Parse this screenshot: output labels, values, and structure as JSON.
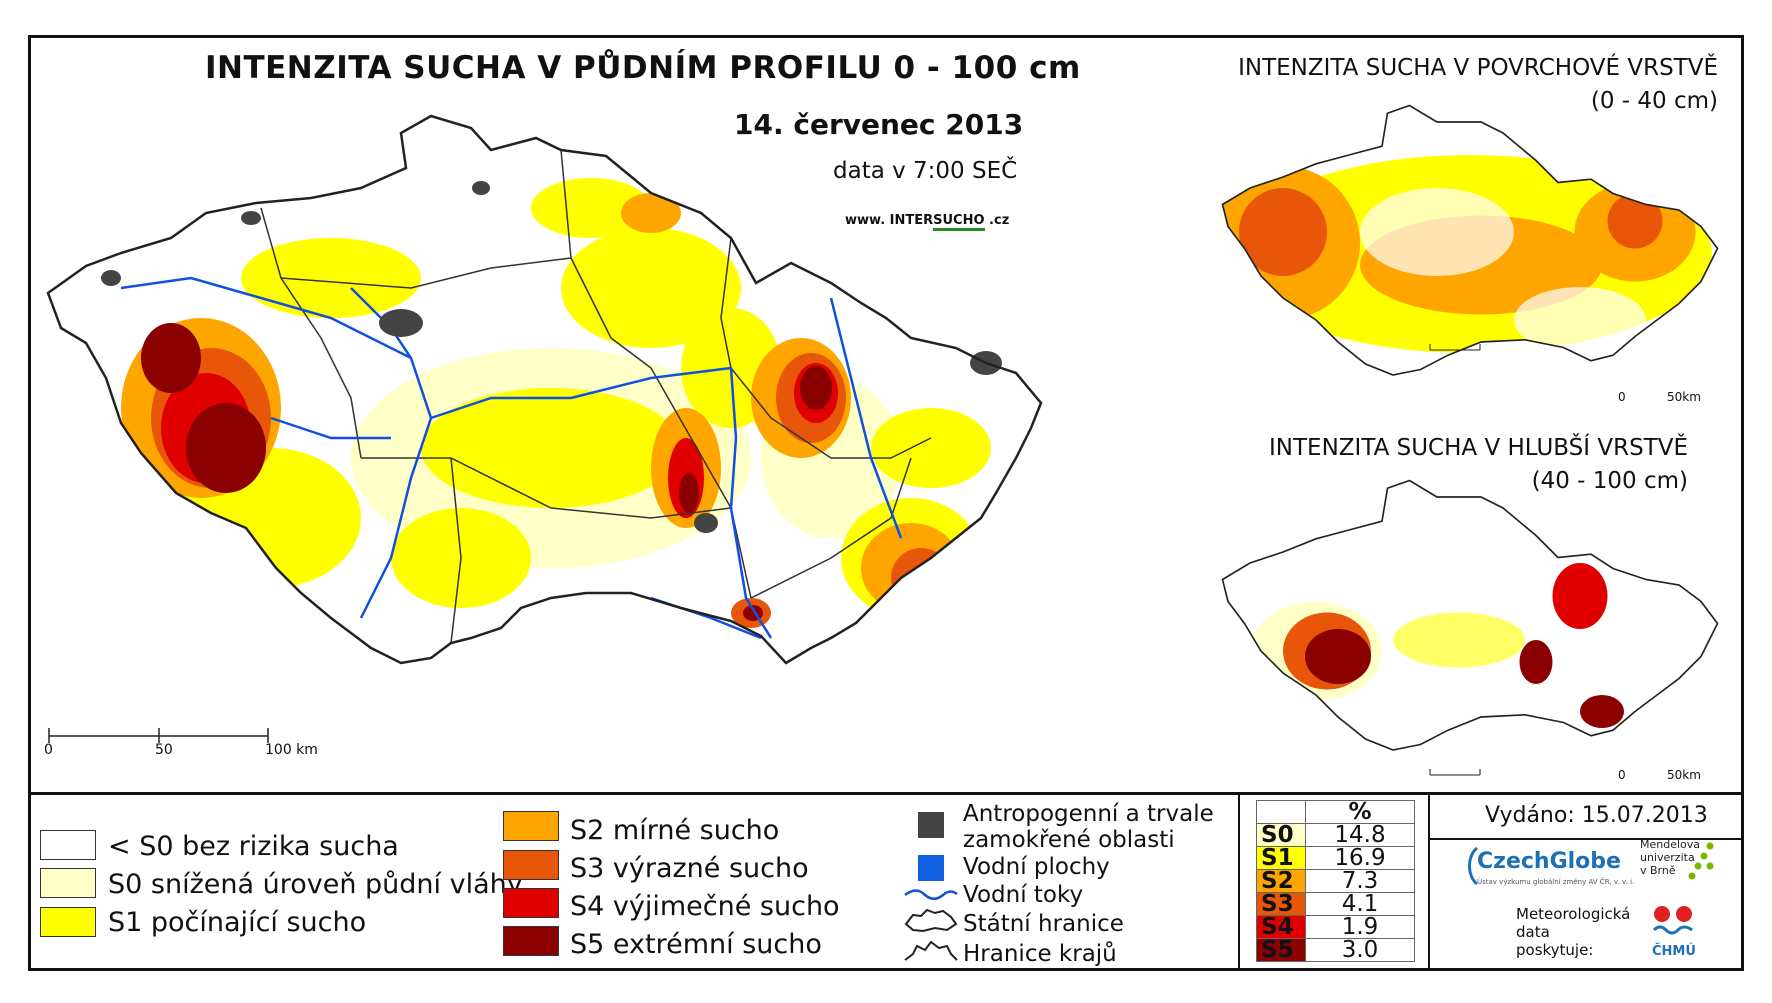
{
  "main_title": "INTENZITA SUCHA V PŮDNÍM PROFILU 0 - 100 cm",
  "date": "14. červenec 2013",
  "data_time": "data v 7:00 SEČ",
  "url": {
    "prefix": "www. INTER",
    "highlight": "SUCHO",
    "suffix": " .cz"
  },
  "inset_top": {
    "title": "INTENZITA SUCHA V POVRCHOVÉ VRSTVĚ",
    "subtitle": "(0 - 40 cm)",
    "scale_0": "0",
    "scale_50": "50km"
  },
  "inset_bottom": {
    "title": "INTENZITA SUCHA V HLUBŠÍ VRSTVĚ",
    "subtitle": "(40 - 100 cm)",
    "scale_0": "0",
    "scale_50": "50km"
  },
  "main_scale": {
    "t0": "0",
    "t50": "50",
    "t100": "100 km"
  },
  "legend_left": [
    {
      "label": "< S0 bez rizika sucha",
      "color": "#ffffff"
    },
    {
      "label": "S0 snížená úroveň půdní vláhy",
      "color": "#ffffc8"
    },
    {
      "label": "S1 počínající sucho",
      "color": "#ffff00"
    }
  ],
  "legend_mid": [
    {
      "label": "S2 mírné sucho",
      "color": "#ffa500"
    },
    {
      "label": "S3 výrazné sucho",
      "color": "#e8560a"
    },
    {
      "label": "S4 výjimečné sucho",
      "color": "#e00000"
    },
    {
      "label": "S5 extrémní sucho",
      "color": "#8b0000"
    }
  ],
  "legend_features": {
    "anthropogenic_line1": "Antropogenní a trvale",
    "anthropogenic_line2": "zamokřené oblasti",
    "water_bodies": "Vodní plochy",
    "rivers": "Vodní toky",
    "state_border": "Státní hranice",
    "region_border": "Hranice krajů",
    "anthropogenic_color": "#444444",
    "water_color": "#1060e0"
  },
  "stats": {
    "header": "%",
    "rows": [
      {
        "cls": "S0",
        "value": "14.8",
        "color": "#ffffc8"
      },
      {
        "cls": "S1",
        "value": "16.9",
        "color": "#ffff00"
      },
      {
        "cls": "S2",
        "value": "7.3",
        "color": "#ffa500"
      },
      {
        "cls": "S3",
        "value": "4.1",
        "color": "#e8560a"
      },
      {
        "cls": "S4",
        "value": "1.9",
        "color": "#e00000"
      },
      {
        "cls": "S5",
        "value": "3.0",
        "color": "#8b0000"
      }
    ]
  },
  "issued": "Vydáno: 15.07.2013",
  "logos": {
    "czechglobe": "CzechGlobe",
    "czechglobe_sub": "Ústav výzkumu globální změny AV ČR, v. v. i.",
    "mendel_1": "Mendelova",
    "mendel_2": "univerzita",
    "mendel_3": "v Brně",
    "chmu": "ČHMÚ",
    "meteo_1": "Meteorologická",
    "meteo_2": "data",
    "meteo_3": "poskytuje:"
  }
}
